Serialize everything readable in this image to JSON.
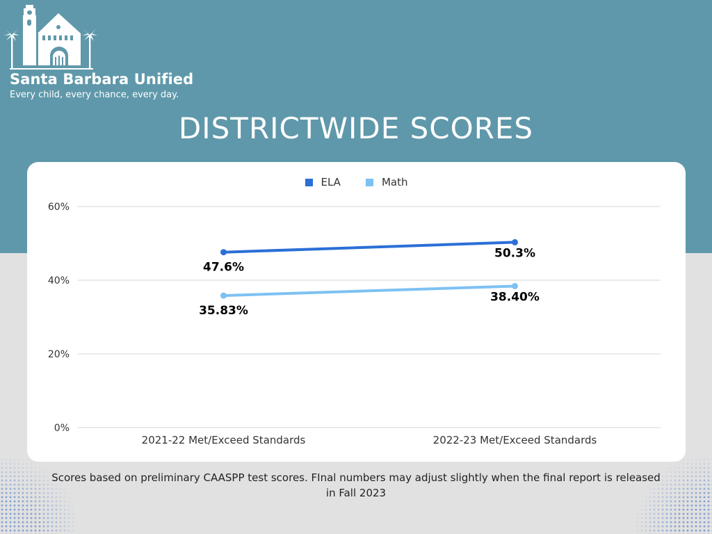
{
  "organization": {
    "name": "Santa Barbara Unified",
    "tagline": "Every child, every chance, every day."
  },
  "page_title": "DISTRICTWIDE SCORES",
  "footnote": "Scores based on preliminary CAASPP test scores. FInal numbers may adjust slightly when the final report is released in Fall 2023",
  "colors": {
    "top_band": "#5f98aa",
    "background": "#e1e1e1",
    "ela": "#2b6fd6",
    "math": "#7ec1f3"
  },
  "chart_data": {
    "type": "line",
    "title": "",
    "xlabel": "",
    "ylabel": "",
    "categories": [
      "2021-22 Met/Exceed Standards",
      "2022-23 Met/Exceed Standards"
    ],
    "series": [
      {
        "name": "ELA",
        "values": [
          47.6,
          50.3
        ],
        "labels": [
          "47.6%",
          "50.3%"
        ],
        "color": "#2b6fd6"
      },
      {
        "name": "Math",
        "values": [
          35.83,
          38.4
        ],
        "labels": [
          "35.83%",
          "38.40%"
        ],
        "color": "#7ec1f3"
      }
    ],
    "ylim": [
      0,
      60
    ],
    "yticks": [
      0,
      20,
      40,
      60
    ],
    "ytick_labels": [
      "0%",
      "20%",
      "40%",
      "60%"
    ],
    "grid": true,
    "legend": "top-center"
  }
}
